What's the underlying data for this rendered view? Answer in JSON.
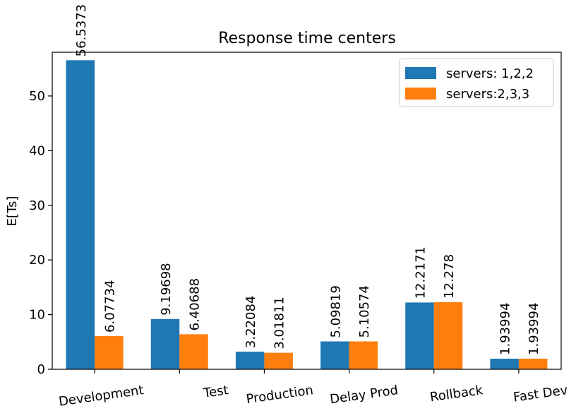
{
  "chart_data": {
    "type": "bar",
    "title": "Response time centers",
    "xlabel": "",
    "ylabel": "E[Ts]",
    "ylim": [
      0,
      58
    ],
    "yticks": [
      0,
      10,
      20,
      30,
      40,
      50
    ],
    "categories": [
      "Development",
      "Test",
      "Production",
      "Delay Prod",
      "Rollback",
      "Fast Dev"
    ],
    "series": [
      {
        "name": "servers: 1,2,2",
        "color": "#1f77b4",
        "values": [
          56.5373,
          9.19698,
          3.22084,
          5.09819,
          12.2171,
          1.93994
        ],
        "labels": [
          "56.5373",
          "9.19698",
          "3.22084",
          "5.09819",
          "12.2171",
          "1.93994"
        ]
      },
      {
        "name": "servers:2,3,3",
        "color": "#ff7f0e",
        "values": [
          6.07734,
          6.40688,
          3.01811,
          5.10574,
          12.278,
          1.93994
        ],
        "labels": [
          "6.07734",
          "6.40688",
          "3.01811",
          "5.10574",
          "12.278",
          "1.93994"
        ]
      }
    ],
    "legend_position": "top-right",
    "grid": false
  }
}
